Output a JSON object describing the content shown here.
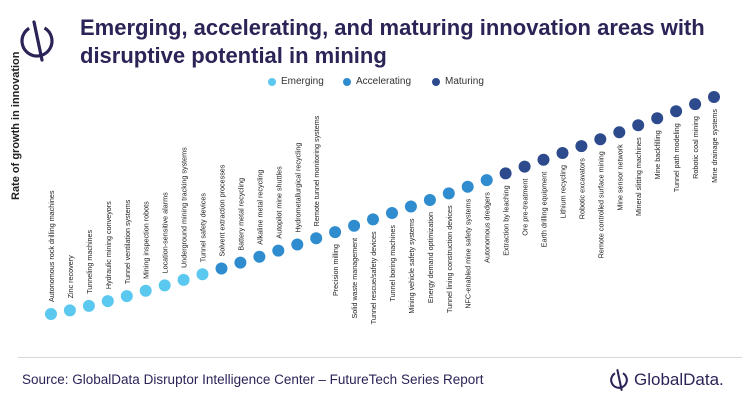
{
  "title": "Emerging, accelerating, and maturing innovation areas with disruptive potential in mining",
  "legend": [
    {
      "label": "Emerging",
      "color": "#5bc8f0"
    },
    {
      "label": "Accelerating",
      "color": "#2e8ccf"
    },
    {
      "label": "Maturing",
      "color": "#2c4a8c"
    }
  ],
  "footer": {
    "source": "Source: GlobalData Disruptor Intelligence Center – FutureTech Series Report",
    "brand": "GlobalData."
  },
  "chart_data": {
    "type": "scatter",
    "ylabel": "Rate of growth in innovation",
    "xlabel": "",
    "grid": false,
    "legend_position": "top-center",
    "points": [
      {
        "label": "Autonomous rock drilling machines",
        "stage": "Emerging",
        "rank": 1
      },
      {
        "label": "Zinc recovery",
        "stage": "Emerging",
        "rank": 2
      },
      {
        "label": "Tunneling machines",
        "stage": "Emerging",
        "rank": 3
      },
      {
        "label": "Hydraulic mining conveyors",
        "stage": "Emerging",
        "rank": 4
      },
      {
        "label": "Tunnel ventilation systems",
        "stage": "Emerging",
        "rank": 5
      },
      {
        "label": "Mining inspection robots",
        "stage": "Emerging",
        "rank": 6
      },
      {
        "label": "Location-sensitive alarms",
        "stage": "Emerging",
        "rank": 7
      },
      {
        "label": "Underground mining tracking systems",
        "stage": "Emerging",
        "rank": 8
      },
      {
        "label": "Tunnel safety devices",
        "stage": "Emerging",
        "rank": 9
      },
      {
        "label": "Solvent extraction processes",
        "stage": "Accelerating",
        "rank": 10
      },
      {
        "label": "Battery metal recycling",
        "stage": "Accelerating",
        "rank": 11
      },
      {
        "label": "Alkaline metal recycling",
        "stage": "Accelerating",
        "rank": 12
      },
      {
        "label": "Autopilot mine shuttles",
        "stage": "Accelerating",
        "rank": 13
      },
      {
        "label": "Hydrometallurgical recycling",
        "stage": "Accelerating",
        "rank": 14
      },
      {
        "label": "Remote tunnel monitoring systems",
        "stage": "Accelerating",
        "rank": 15
      },
      {
        "label": "Precision milling",
        "stage": "Accelerating",
        "rank": 16
      },
      {
        "label": "Solid waste management",
        "stage": "Accelerating",
        "rank": 17
      },
      {
        "label": "Tunnel rescue/safety devices",
        "stage": "Accelerating",
        "rank": 18
      },
      {
        "label": "Tunnel boring machines",
        "stage": "Accelerating",
        "rank": 19
      },
      {
        "label": "Mining vehicle safety systems",
        "stage": "Accelerating",
        "rank": 20
      },
      {
        "label": "Energy demand optimization",
        "stage": "Accelerating",
        "rank": 21
      },
      {
        "label": "Tunnel lining construction devices",
        "stage": "Accelerating",
        "rank": 22
      },
      {
        "label": "NFC-enabled mine safety systems",
        "stage": "Accelerating",
        "rank": 23
      },
      {
        "label": "Autonomous dredgers",
        "stage": "Accelerating",
        "rank": 24
      },
      {
        "label": "Extraction by leaching",
        "stage": "Maturing",
        "rank": 25
      },
      {
        "label": "Ore pre-treatment",
        "stage": "Maturing",
        "rank": 26
      },
      {
        "label": "Earth drilling equipment",
        "stage": "Maturing",
        "rank": 27
      },
      {
        "label": "Lithium recycling",
        "stage": "Maturing",
        "rank": 28
      },
      {
        "label": "Robotic excavators",
        "stage": "Maturing",
        "rank": 29
      },
      {
        "label": "Remote controlled surface mining",
        "stage": "Maturing",
        "rank": 30
      },
      {
        "label": "Mine sensor network",
        "stage": "Maturing",
        "rank": 31
      },
      {
        "label": "Mineral slitting machines",
        "stage": "Maturing",
        "rank": 32
      },
      {
        "label": "Mine backfilling",
        "stage": "Maturing",
        "rank": 33
      },
      {
        "label": "Tunnel path modeling",
        "stage": "Maturing",
        "rank": 34
      },
      {
        "label": "Robotic coal mining",
        "stage": "Maturing",
        "rank": 35
      },
      {
        "label": "Mine drainage systems",
        "stage": "Maturing",
        "rank": 36
      }
    ]
  }
}
